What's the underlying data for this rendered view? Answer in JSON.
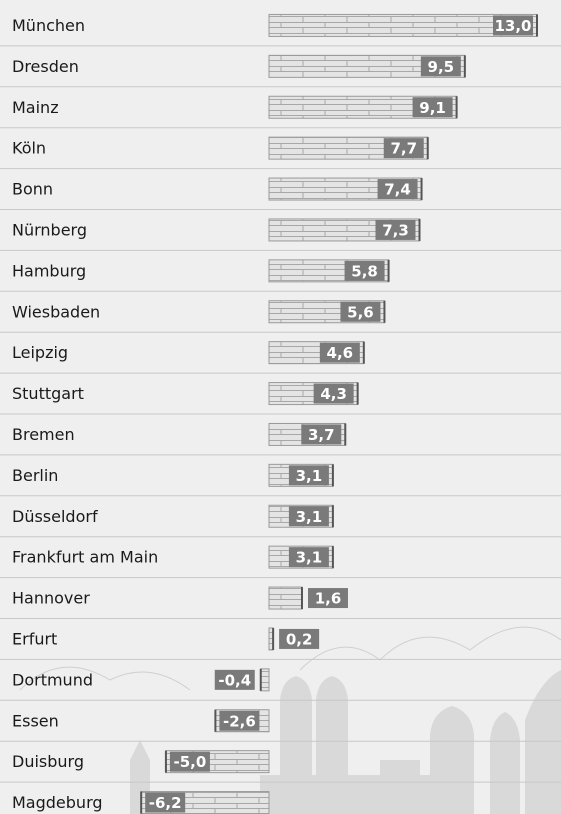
{
  "chart_data": {
    "type": "bar",
    "categories": [
      "München",
      "Dresden",
      "Mainz",
      "Köln",
      "Bonn",
      "Nürnberg",
      "Hamburg",
      "Wiesbaden",
      "Leipzig",
      "Stuttgart",
      "Bremen",
      "Berlin",
      "Düsseldorf",
      "Frankfurt am Main",
      "Hannover",
      "Erfurt",
      "Dortmund",
      "Essen",
      "Duisburg",
      "Magdeburg"
    ],
    "values": [
      13.0,
      9.5,
      9.1,
      7.7,
      7.4,
      7.3,
      5.8,
      5.6,
      4.6,
      4.3,
      3.7,
      3.1,
      3.1,
      3.1,
      1.6,
      0.2,
      -0.4,
      -2.6,
      -5.0,
      -6.2
    ],
    "value_labels": [
      "13,0",
      "9,5",
      "9,1",
      "7,7",
      "7,4",
      "7,3",
      "5,8",
      "5,6",
      "4,6",
      "4,3",
      "3,7",
      "3,1",
      "3,1",
      "3,1",
      "1,6",
      "0,2",
      "-0,4",
      "-2,6",
      "-5,0",
      "-6,2"
    ],
    "color": "#e4e4e4"
  }
}
